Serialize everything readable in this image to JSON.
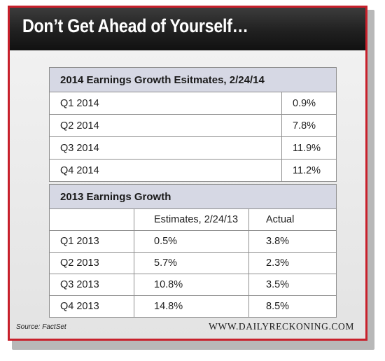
{
  "header": {
    "title": "Don’t Get Ahead of Yourself…"
  },
  "chart_data": [
    {
      "type": "table",
      "title": "2014 Earnings Growth Esitmates, 2/24/14",
      "columns": [],
      "rows": [
        [
          "Q1 2014",
          "0.9%"
        ],
        [
          "Q2 2014",
          "7.8%"
        ],
        [
          "Q3 2014",
          "11.9%"
        ],
        [
          "Q4 2014",
          "11.2%"
        ]
      ]
    },
    {
      "type": "table",
      "title": "2013 Earnings Growth",
      "columns": [
        "",
        "Estimates, 2/24/13",
        "Actual"
      ],
      "rows": [
        [
          "Q1 2013",
          "0.5%",
          "3.8%"
        ],
        [
          "Q2 2013",
          "5.7%",
          "2.3%"
        ],
        [
          "Q3 2013",
          "10.8%",
          "3.5%"
        ],
        [
          "Q4 2013",
          "14.8%",
          "8.5%"
        ]
      ]
    }
  ],
  "footer": {
    "source": "Source: FactSet",
    "site": "WWW.DAILYRECKONING.COM"
  },
  "colors": {
    "border": "#c8202b",
    "header_bg": "#202020",
    "table_title_bg": "#d6d8e4"
  }
}
